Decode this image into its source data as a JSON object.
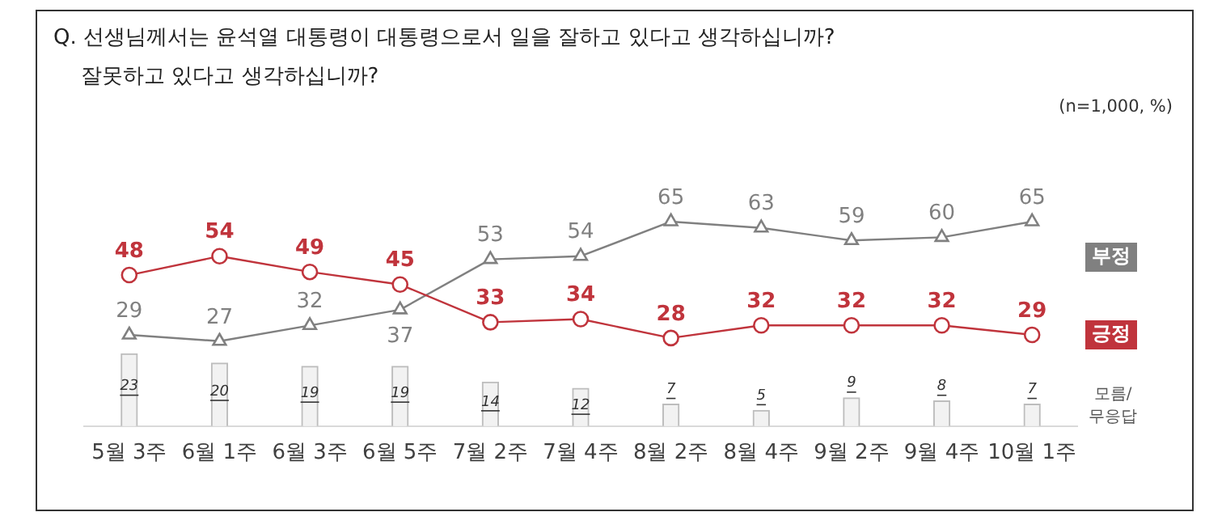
{
  "chart_data": {
    "type": "line",
    "title": "Q. 선생님께서는 윤석열 대통령이 대통령으로서 일을 잘하고 있다고 생각하십니까?",
    "subtitle": "잘못하고 있다고 생각하십니까?",
    "annotations": [
      "(n=1,000,  %)"
    ],
    "categories": [
      "5월 3주",
      "6월 1주",
      "6월 3주",
      "6월 5주",
      "7월 2주",
      "7월 4주",
      "8월 2주",
      "8월 4주",
      "9월 2주",
      "9월 4주",
      "10월 1주"
    ],
    "series": [
      {
        "name": "긍정",
        "color": "#c0343c",
        "marker": "circle",
        "values": [
          48,
          54,
          49,
          45,
          33,
          34,
          28,
          32,
          32,
          32,
          29
        ]
      },
      {
        "name": "부정",
        "color": "#808080",
        "marker": "triangle",
        "values": [
          29,
          27,
          32,
          37,
          53,
          54,
          65,
          63,
          59,
          60,
          65
        ]
      },
      {
        "name": "모름/무응답",
        "type": "bar",
        "color": "#f2f2f2",
        "values": [
          23,
          20,
          19,
          19,
          14,
          12,
          7,
          5,
          9,
          8,
          7
        ]
      }
    ],
    "tick_labels": "x",
    "grid": false,
    "legend": false,
    "data_labels": true
  }
}
